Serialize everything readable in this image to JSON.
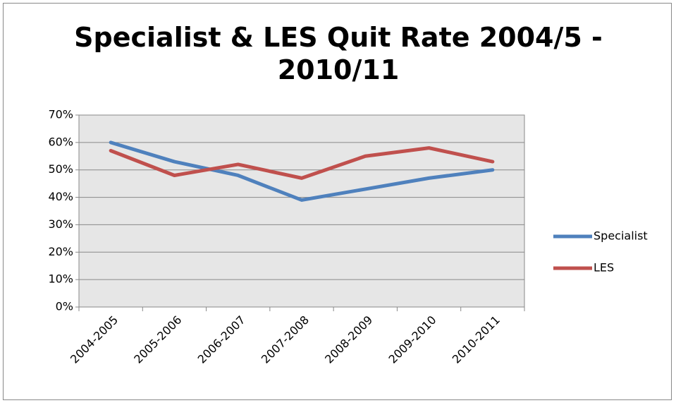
{
  "chart_data": {
    "type": "line",
    "title": "Specialist & LES Quit Rate 2004/5 - 2010/11",
    "categories": [
      "2004-2005",
      "2005-2006",
      "2006-2007",
      "2007-2008",
      "2008-2009",
      "2009-2010",
      "2010-2011"
    ],
    "series": [
      {
        "name": "Specialist",
        "color": "#4f81bd",
        "values": [
          60,
          53,
          48,
          39,
          43,
          47,
          50
        ]
      },
      {
        "name": "LES",
        "color": "#c0504d",
        "values": [
          57,
          48,
          52,
          47,
          55,
          58,
          53
        ]
      }
    ],
    "ylim": [
      0,
      70
    ],
    "yticks": [
      {
        "value": 0,
        "label": "0%"
      },
      {
        "value": 10,
        "label": "10%"
      },
      {
        "value": 20,
        "label": "20%"
      },
      {
        "value": 30,
        "label": "30%"
      },
      {
        "value": 40,
        "label": "40%"
      },
      {
        "value": 50,
        "label": "50%"
      },
      {
        "value": 60,
        "label": "60%"
      },
      {
        "value": 70,
        "label": "70%"
      }
    ],
    "grid": true,
    "legend": "right"
  }
}
